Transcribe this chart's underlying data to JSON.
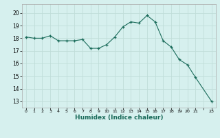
{
  "x": [
    0,
    1,
    2,
    3,
    4,
    5,
    6,
    7,
    8,
    9,
    10,
    11,
    12,
    13,
    14,
    15,
    16,
    17,
    18,
    19,
    20,
    21,
    23
  ],
  "y": [
    18.1,
    18.0,
    18.0,
    18.2,
    17.8,
    17.8,
    17.8,
    17.9,
    17.2,
    17.2,
    17.5,
    18.1,
    18.9,
    19.3,
    19.2,
    19.8,
    19.3,
    17.8,
    17.3,
    16.3,
    15.9,
    14.9,
    13.0
  ],
  "line_color": "#1a6b5a",
  "marker": "+",
  "bg_color": "#d6f0ee",
  "grid_color": "#c0ddd9",
  "xlabel": "Humidex (Indice chaleur)",
  "xlim": [
    -0.5,
    23.5
  ],
  "ylim": [
    12.5,
    20.7
  ],
  "yticks": [
    13,
    14,
    15,
    16,
    17,
    18,
    19,
    20
  ],
  "figsize": [
    3.2,
    2.0
  ],
  "dpi": 100
}
